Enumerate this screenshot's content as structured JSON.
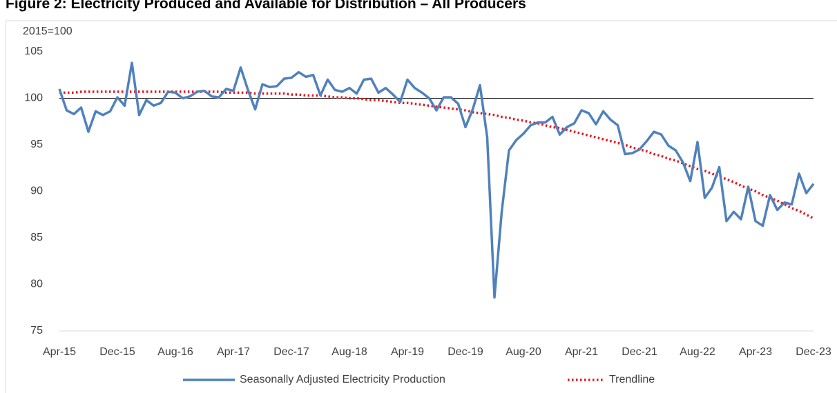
{
  "chart_data": {
    "type": "line",
    "title": "Figure 2: Electricity Produced and Available for Distribution – All Producers",
    "y_axis_label": "2015=100",
    "categories": [
      "Apr-15",
      null,
      null,
      null,
      null,
      null,
      null,
      null,
      "Dec-15",
      null,
      null,
      null,
      null,
      null,
      null,
      null,
      "Aug-16",
      null,
      null,
      null,
      null,
      null,
      null,
      null,
      "Apr-17",
      null,
      null,
      null,
      null,
      null,
      null,
      null,
      "Dec-17",
      null,
      null,
      null,
      null,
      null,
      null,
      null,
      "Aug-18",
      null,
      null,
      null,
      null,
      null,
      null,
      null,
      "Apr-19",
      null,
      null,
      null,
      null,
      null,
      null,
      null,
      "Dec-19",
      null,
      null,
      null,
      null,
      null,
      null,
      null,
      "Aug-20",
      null,
      null,
      null,
      null,
      null,
      null,
      null,
      "Apr-21",
      null,
      null,
      null,
      null,
      null,
      null,
      null,
      "Dec-21",
      null,
      null,
      null,
      null,
      null,
      null,
      null,
      "Aug-22",
      null,
      null,
      null,
      null,
      null,
      null,
      null,
      "Apr-23",
      null,
      null,
      null,
      null,
      null,
      null,
      null,
      "Dec-23"
    ],
    "series": [
      {
        "name": "Seasonally Adjusted Electricity Production",
        "color": "#4f81bd",
        "line_style": "solid",
        "values": [
          101.0,
          98.7,
          98.3,
          99.0,
          96.4,
          98.6,
          98.2,
          98.6,
          100.1,
          99.2,
          103.8,
          98.2,
          99.8,
          99.2,
          99.5,
          100.7,
          100.6,
          100.0,
          100.2,
          100.7,
          100.8,
          100.2,
          100.1,
          101.0,
          100.8,
          103.3,
          100.9,
          98.8,
          101.5,
          101.2,
          101.3,
          102.1,
          102.2,
          102.8,
          102.3,
          102.5,
          100.3,
          102.0,
          100.9,
          100.7,
          101.1,
          100.5,
          102.0,
          102.1,
          100.6,
          101.1,
          100.4,
          99.6,
          102.0,
          101.1,
          100.6,
          100.0,
          98.7,
          100.1,
          100.1,
          99.4,
          96.9,
          98.8,
          101.4,
          95.8,
          78.6,
          87.8,
          94.4,
          95.5,
          96.2,
          97.1,
          97.4,
          97.4,
          98.0,
          96.1,
          96.9,
          97.3,
          98.7,
          98.4,
          97.2,
          98.6,
          97.7,
          97.1,
          94.0,
          94.1,
          94.5,
          95.4,
          96.4,
          96.1,
          94.9,
          94.4,
          93.1,
          91.1,
          95.3,
          89.3,
          90.4,
          92.6,
          86.8,
          87.8,
          87.0,
          90.5,
          86.8,
          86.3,
          89.6,
          88.0,
          88.8,
          88.6,
          91.9,
          89.8,
          90.8
        ]
      },
      {
        "name": "Trendline",
        "color": "#e8141c",
        "line_style": "dotted",
        "values": [
          100.6,
          100.6,
          100.6,
          100.7,
          100.7,
          100.7,
          100.7,
          100.7,
          100.7,
          100.7,
          100.7,
          100.7,
          100.7,
          100.7,
          100.7,
          100.7,
          100.7,
          100.7,
          100.7,
          100.7,
          100.7,
          100.7,
          100.7,
          100.6,
          100.6,
          100.6,
          100.6,
          100.5,
          100.5,
          100.5,
          100.5,
          100.5,
          100.4,
          100.4,
          100.3,
          100.3,
          100.3,
          100.2,
          100.1,
          100.1,
          100.0,
          100.0,
          99.9,
          99.8,
          99.8,
          99.7,
          99.6,
          99.5,
          99.5,
          99.4,
          99.3,
          99.2,
          99.1,
          99.0,
          98.9,
          98.8,
          98.7,
          98.5,
          98.4,
          98.3,
          98.2,
          98.0,
          97.9,
          97.7,
          97.6,
          97.4,
          97.3,
          97.1,
          96.9,
          96.8,
          96.6,
          96.4,
          96.2,
          96.0,
          95.8,
          95.6,
          95.4,
          95.2,
          95.0,
          94.7,
          94.5,
          94.3,
          94.0,
          93.8,
          93.5,
          93.3,
          93.0,
          92.7,
          92.4,
          92.2,
          91.9,
          91.6,
          91.3,
          91.0,
          90.6,
          90.3,
          90.0,
          89.6,
          89.3,
          89.0,
          88.6,
          88.2,
          87.9,
          87.5,
          87.1
        ]
      }
    ],
    "ylim": [
      75,
      105
    ],
    "yticks": [
      75,
      80,
      85,
      90,
      95,
      100,
      105
    ],
    "reference_line": 100,
    "grid": false,
    "legend_position": "bottom"
  }
}
